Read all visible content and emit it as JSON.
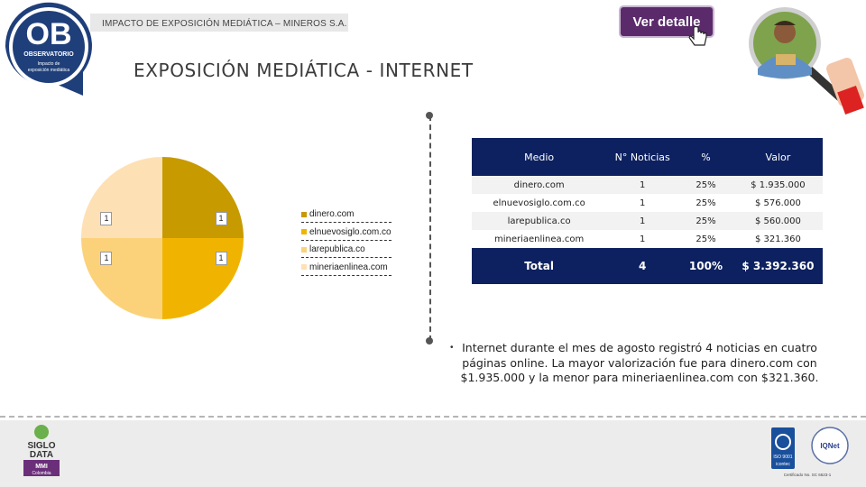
{
  "header": {
    "report_title": "IMPACTO DE EXPOSICIÓN MEDIÁTICA – MINEROS S.A.",
    "ver_detalle": "Ver detalle"
  },
  "logo": {
    "initials": "OB",
    "line1": "OBSERVATORIO",
    "line2": "Impacto de",
    "line3": "exposición mediática"
  },
  "page_title": "EXPOSICIÓN MEDIÁTICA - INTERNET",
  "colors": {
    "accent_navy": "#0d2160",
    "button_purple": "#5b2a6b"
  },
  "chart_data": {
    "type": "pie",
    "categories": [
      "dinero.com",
      "elnuevosiglo.com.co",
      "larepublica.co",
      "mineriaenlinea.com"
    ],
    "values": [
      1,
      1,
      1,
      1
    ],
    "slice_labels": [
      "1",
      "1",
      "1",
      "1"
    ],
    "colors": [
      "#c79a00",
      "#f0b400",
      "#fbd27a",
      "#fde0b4"
    ],
    "legend_position": "right"
  },
  "table": {
    "headers": [
      "Medio",
      "N° Noticias",
      "%",
      "Valor"
    ],
    "rows": [
      [
        "dinero.com",
        "1",
        "25%",
        "$ 1.935.000"
      ],
      [
        "elnuevosiglo.com.co",
        "1",
        "25%",
        "$ 576.000"
      ],
      [
        "larepublica.co",
        "1",
        "25%",
        "$ 560.000"
      ],
      [
        "mineriaenlinea.com",
        "1",
        "25%",
        "$ 321.360"
      ]
    ],
    "total": [
      "Total",
      "4",
      "100%",
      "$ 3.392.360"
    ]
  },
  "summary": {
    "bullet": "•",
    "text": "Internet durante el mes de agosto registró 4 noticias en cuatro páginas online. La mayor valorización fue para dinero.com con $1.935.000 y la menor para mineriaenlinea.com con $321.360."
  },
  "footer": {
    "siglo_line1": "SIGLO",
    "siglo_line2": "DATA",
    "siglo_line3": "MMI",
    "siglo_line4": "Colombia",
    "iso_text": "ISO 9001",
    "iqnet_text": "IQNet",
    "icontec_text": "icontec",
    "certificado": "Certificado No. SC 6623-1"
  }
}
